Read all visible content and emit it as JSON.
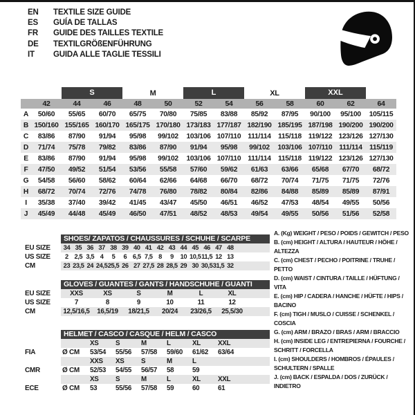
{
  "languages": [
    {
      "code": "EN",
      "text": "TEXTILE SIZE GUIDE"
    },
    {
      "code": "ES",
      "text": "GUÍA DE TALLAS"
    },
    {
      "code": "FR",
      "text": "GUIDE DES TAILLES TEXTILE"
    },
    {
      "code": "DE",
      "text": "TEXTILGRÖßENFÜHRUNG"
    },
    {
      "code": "IT",
      "text": "GUIDA ALLE TAGLIE TESSILI"
    }
  ],
  "icons": {
    "helmet_icon": "full-face-racing-helmet"
  },
  "colors": {
    "bar_dark": "#3e3e3e",
    "number_band": "#b1b1b1",
    "zebra_row": "#e8e8e8",
    "subtable_row": "#e5e5e5",
    "text": "#1a1a1a"
  },
  "main_table": {
    "size_groups": [
      {
        "label": "S",
        "highlighted": true
      },
      {
        "label": "M",
        "highlighted": false
      },
      {
        "label": "L",
        "highlighted": true
      },
      {
        "label": "XL",
        "highlighted": false
      },
      {
        "label": "XXL",
        "highlighted": true
      }
    ],
    "columns": [
      "42",
      "44",
      "46",
      "48",
      "50",
      "52",
      "54",
      "56",
      "58",
      "60",
      "62",
      "64"
    ],
    "rows": [
      {
        "letter": "A",
        "values": [
          "50/60",
          "55/65",
          "60/70",
          "65/75",
          "70/80",
          "75/85",
          "83/88",
          "85/92",
          "87/95",
          "90/100",
          "95/100",
          "105/115"
        ]
      },
      {
        "letter": "B",
        "values": [
          "150/160",
          "155/165",
          "160/170",
          "165/175",
          "170/180",
          "173/183",
          "177/187",
          "182/190",
          "185/195",
          "187/198",
          "190/200",
          "190/200"
        ]
      },
      {
        "letter": "C",
        "values": [
          "83/86",
          "87/90",
          "91/94",
          "95/98",
          "99/102",
          "103/106",
          "107/110",
          "111/114",
          "115/118",
          "119/122",
          "123/126",
          "127/130"
        ]
      },
      {
        "letter": "D",
        "values": [
          "71/74",
          "75/78",
          "79/82",
          "83/86",
          "87/90",
          "91/94",
          "95/98",
          "99/102",
          "103/106",
          "107/110",
          "111/114",
          "115/119"
        ]
      },
      {
        "letter": "E",
        "values": [
          "83/86",
          "87/90",
          "91/94",
          "95/98",
          "99/102",
          "103/106",
          "107/110",
          "111/114",
          "115/118",
          "119/122",
          "123/126",
          "127/130"
        ]
      },
      {
        "letter": "F",
        "values": [
          "47/50",
          "49/52",
          "51/54",
          "53/56",
          "55/58",
          "57/60",
          "59/62",
          "61/63",
          "63/66",
          "65/68",
          "67/70",
          "68/72"
        ]
      },
      {
        "letter": "G",
        "values": [
          "54/58",
          "56/60",
          "58/62",
          "60/64",
          "62/66",
          "64/68",
          "66/70",
          "68/72",
          "70/74",
          "71/75",
          "71/75",
          "72/76"
        ]
      },
      {
        "letter": "H",
        "values": [
          "68/72",
          "70/74",
          "72/76",
          "74/78",
          "76/80",
          "78/82",
          "80/84",
          "82/86",
          "84/88",
          "85/89",
          "85/89",
          "87/91"
        ]
      },
      {
        "letter": "I",
        "values": [
          "35/38",
          "37/40",
          "39/42",
          "41/45",
          "43/47",
          "45/50",
          "46/51",
          "46/52",
          "47/53",
          "48/54",
          "49/55",
          "50/56"
        ]
      },
      {
        "letter": "J",
        "values": [
          "45/49",
          "44/48",
          "45/49",
          "46/50",
          "47/51",
          "48/52",
          "48/53",
          "49/54",
          "49/55",
          "50/56",
          "51/56",
          "52/58"
        ]
      }
    ]
  },
  "shoes_table": {
    "title": "SHOES/ ZAPATOS / CHAUSSURES / SCHUHE / SCARPE",
    "rows": [
      {
        "label": "EU SIZE",
        "shaded": true,
        "cells": [
          "34",
          "35",
          "36",
          "37",
          "38",
          "39",
          "40",
          "41",
          "42",
          "43",
          "44",
          "45",
          "46",
          "47",
          "48"
        ]
      },
      {
        "label": "US SIZE",
        "shaded": false,
        "cells": [
          "2",
          "2,5",
          "3,5",
          "4",
          "5",
          "6",
          "6,5",
          "7,5",
          "8",
          "9",
          "10",
          "10,5",
          "11,5",
          "12",
          "13"
        ]
      },
      {
        "label": "CM",
        "shaded": true,
        "cells": [
          "23",
          "23,5",
          "24",
          "24,5",
          "25,5",
          "26",
          "27",
          "27,5",
          "28",
          "28,5",
          "29",
          "30",
          "30,5",
          "31,5",
          "32"
        ]
      }
    ]
  },
  "gloves_table": {
    "title": "GLOVES / GUANTES / GANTS / HANDSCHUHE / GUANTI",
    "rows": [
      {
        "label": "EU SIZE",
        "shaded": true,
        "cells": [
          "XXS",
          "XS",
          "S",
          "M",
          "L",
          "XL"
        ]
      },
      {
        "label": "US SIZE",
        "shaded": false,
        "cells": [
          "7",
          "8",
          "9",
          "10",
          "11",
          "12"
        ]
      },
      {
        "label": "CM",
        "shaded": true,
        "cells": [
          "12,5/16,5",
          "16,5/19",
          "18/21,5",
          "20/24",
          "23/26,5",
          "25,5/30"
        ]
      }
    ]
  },
  "helmet_table": {
    "title": "HELMET / CASCO / CASQUE / HELM / CASCO",
    "rows": [
      {
        "label": "",
        "unit": "",
        "shaded": true,
        "cells": [
          "XS",
          "S",
          "M",
          "L",
          "XL",
          "XXL"
        ]
      },
      {
        "label": "FIA",
        "unit": "Ø CM",
        "shaded": false,
        "cells": [
          "53/54",
          "55/56",
          "57/58",
          "59/60",
          "61/62",
          "63/64"
        ]
      },
      {
        "label": "",
        "unit": "",
        "shaded": true,
        "cells": [
          "XXS",
          "XS",
          "S",
          "M",
          "L"
        ]
      },
      {
        "label": "CMR",
        "unit": "Ø CM",
        "shaded": false,
        "cells": [
          "52/53",
          "54/55",
          "56/57",
          "58",
          "59"
        ]
      },
      {
        "label": "",
        "unit": "",
        "shaded": true,
        "cells": [
          "XS",
          "S",
          "M",
          "L",
          "XL",
          "XXL"
        ]
      },
      {
        "label": "ECE",
        "unit": "Ø CM",
        "shaded": false,
        "cells": [
          "53",
          "55/56",
          "57/58",
          "59",
          "60",
          "61"
        ]
      }
    ]
  },
  "legend": {
    "items": [
      "A. (Kg) WEIGHT / PESO / POIDS / GEWITCH / PESO",
      "B. (cm) HEIGHT / ALTURA / HAUTEUR / HÖHE / ALTEZZA",
      "C. (cm) CHEST / PECHO / POITRINE / TRUHE / PETTO",
      "D. (cm) WAIST / CINTURA / TAILLE / HÜFTUNG / VITA",
      "E. (cm) HIP / CADERA / HANCHE / HÜFTE / HIPS / BACINO",
      "F. (cm) TIGH / MUSLO / CUISSE / SCHENKEL / COSCIA",
      "G. (cm) ARM / BRAZO / BRAS / ARM / BRACCIO",
      "H. (cm) INSIDE LEG / ENTREPIERNA / FOURCHE / SCHRITT / FORCELLA",
      "I. (cm) SHOULDERS / HOMBROS / ÉPAULES / SCHULTERN / SPALLE",
      "J. (cm) BACK / ESPALDA / DOS / ZURÜCK / INDIETRO"
    ]
  }
}
